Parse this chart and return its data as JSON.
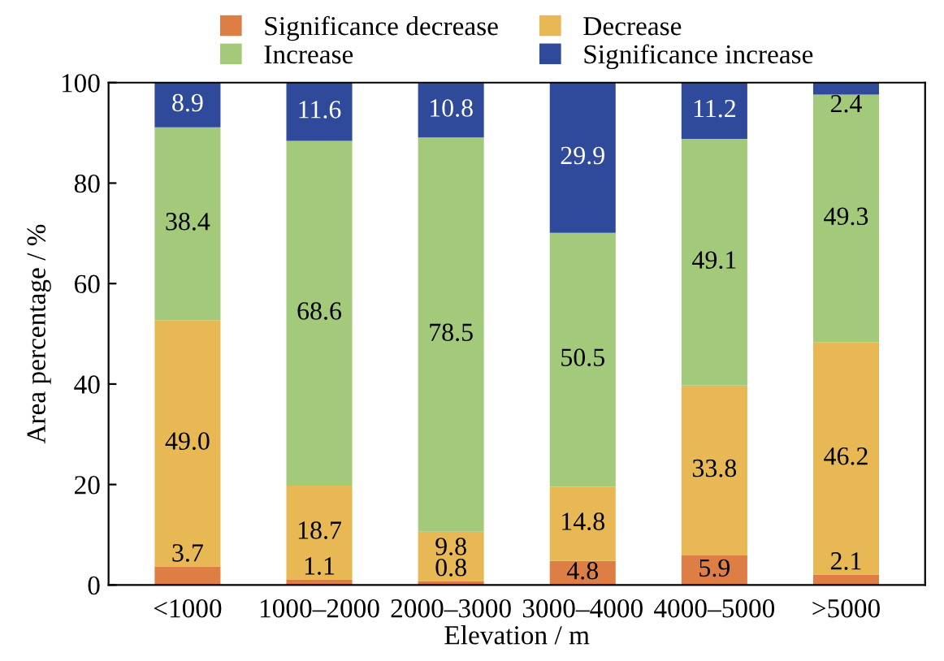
{
  "chart_data": {
    "type": "bar",
    "stacked": true,
    "xlabel": "Elevation / m",
    "ylabel": "Area percentage / %",
    "categories": [
      "<1000",
      "1000–2000",
      "2000–3000",
      "3000–4000",
      "4000–5000",
      ">5000"
    ],
    "series": [
      {
        "name": "Significance decrease",
        "color": "#dd7f45",
        "values": [
          3.7,
          1.1,
          0.8,
          4.8,
          5.9,
          2.1
        ]
      },
      {
        "name": "Decrease",
        "color": "#e8b854",
        "values": [
          49.0,
          18.7,
          9.8,
          14.8,
          33.8,
          46.2
        ]
      },
      {
        "name": "Increase",
        "color": "#a3c97a",
        "values": [
          38.4,
          68.6,
          78.5,
          50.5,
          49.1,
          49.3
        ]
      },
      {
        "name": "Significance increase",
        "color": "#2f4a9a",
        "values": [
          8.9,
          11.6,
          10.8,
          29.9,
          11.2,
          2.4
        ]
      }
    ],
    "value_labels": [
      [
        "3.7",
        "1.1",
        "0.8",
        "4.8",
        "5.9",
        "2.1"
      ],
      [
        "49.0",
        "18.7",
        "9.8",
        "14.8",
        "33.8",
        "46.2"
      ],
      [
        "38.4",
        "68.6",
        "78.5",
        "50.5",
        "49.1",
        "49.3"
      ],
      [
        "8.9",
        "11.6",
        "10.8",
        "29.9",
        "11.2",
        "2.4"
      ]
    ],
    "ylim": [
      0,
      100
    ],
    "yticks": [
      0,
      20,
      40,
      60,
      80,
      100
    ],
    "legend": "top",
    "grid": false
  }
}
